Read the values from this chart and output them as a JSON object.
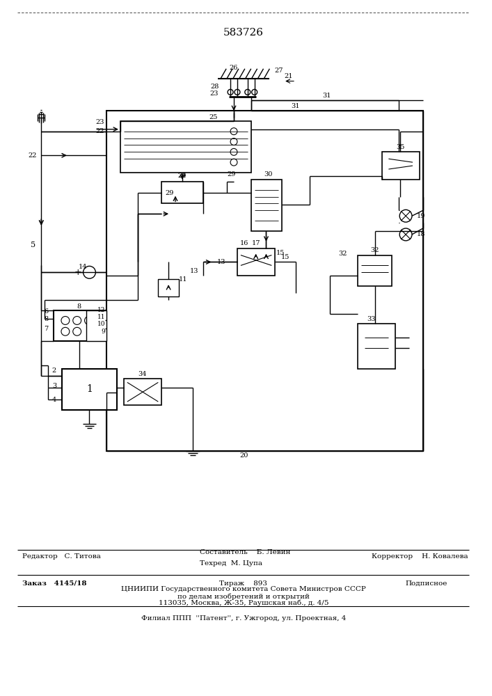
{
  "patent_number": "583726",
  "bg": "#ffffff",
  "lc": "#000000",
  "footer": {
    "line1_left": "Редактор   С. Титова",
    "line1_mid1": "Составитель    Б. Левин",
    "line1_mid2": "Техред  М. Цупа",
    "line1_right": "Корректор    Н. Ковалева",
    "line2_left": "Заказ   4145/18",
    "line2_mid": "Тираж    893",
    "line2_right": "Подписное",
    "line3": "ЦНИИПИ Государственного комитета Совета Министров СССР",
    "line4": "по делам изобретений и открытий",
    "line5": "113035, Москва, Ж-35, Раушская наб., д. 4/5",
    "line6": "Филиал ППП  ''Патент'', г. Ужгород, ул. Проектная, 4"
  }
}
